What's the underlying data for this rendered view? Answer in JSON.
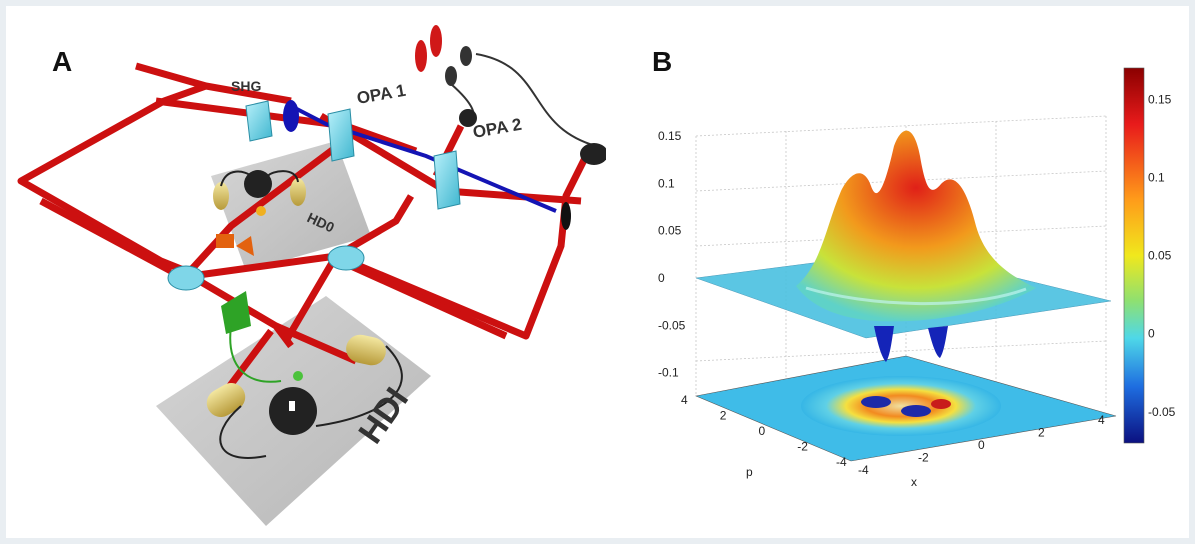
{
  "panels": {
    "a_label": "A",
    "b_label": "B"
  },
  "schematic": {
    "components": {
      "shg": "SHG",
      "opa1": "OPA 1",
      "opa2": "OPA 2",
      "hd0": "HD0",
      "hdi": "HDI"
    },
    "colors": {
      "beam_red": "#cc1010",
      "beam_blue": "#1414b4",
      "crystal": "#7fd6e8",
      "detector": "#d8c060",
      "plate": "#b9b9b9"
    }
  },
  "chart_data": {
    "type": "surface",
    "z_ticks": [
      "0.15",
      "0.1",
      "0.05",
      "0",
      "-0.05",
      "-0.1"
    ],
    "x_ticks": [
      "-4",
      "-2",
      "0",
      "2",
      "4"
    ],
    "p_ticks": [
      "4",
      "2",
      "0",
      "-2",
      "-4"
    ],
    "xlabel": "x",
    "plabel": "p",
    "colorbar": {
      "ticks": [
        "0.15",
        "0.1",
        "0.05",
        "0",
        "-0.05"
      ],
      "range": [
        -0.07,
        0.17
      ]
    },
    "peaks": [
      {
        "x": -1.5,
        "p": 0.8,
        "z": 0.12
      },
      {
        "x": 0.3,
        "p": 1.2,
        "z": 0.16
      },
      {
        "x": 1.6,
        "p": 0.5,
        "z": 0.11
      }
    ],
    "dips": [
      {
        "x": -0.6,
        "p": -0.4,
        "z": -0.09
      },
      {
        "x": 0.6,
        "p": -0.6,
        "z": -0.09
      }
    ],
    "zlim": [
      -0.1,
      0.15
    ],
    "xlim": [
      -4,
      4
    ],
    "plim": [
      -4,
      4
    ],
    "grid": true
  }
}
